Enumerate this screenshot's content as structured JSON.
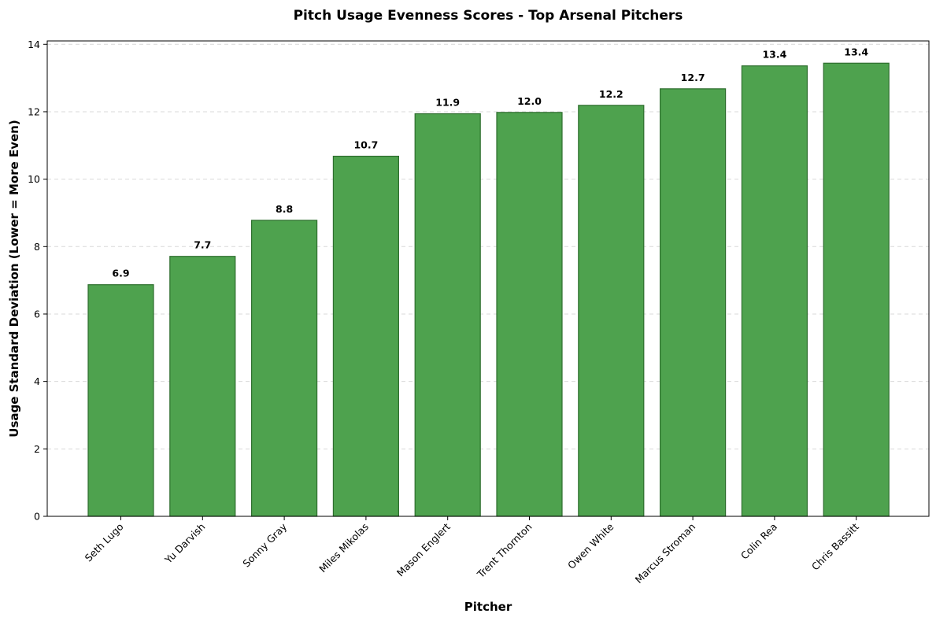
{
  "chart_data": {
    "type": "bar",
    "title": "Pitch Usage Evenness Scores - Top Arsenal Pitchers",
    "xlabel": "Pitcher",
    "ylabel": "Usage Standard Deviation (Lower = More Even)",
    "categories": [
      "Seth Lugo",
      "Yu Darvish",
      "Sonny Gray",
      "Miles Mikolas",
      "Mason Englert",
      "Trent Thornton",
      "Owen White",
      "Marcus Stroman",
      "Colin Rea",
      "Chris Bassitt"
    ],
    "values": [
      6.87,
      7.71,
      8.78,
      10.68,
      11.94,
      11.98,
      12.19,
      12.68,
      13.36,
      13.44
    ],
    "value_labels": [
      "6.9",
      "7.7",
      "8.8",
      "10.7",
      "11.9",
      "12.0",
      "12.2",
      "12.7",
      "13.4",
      "13.4"
    ],
    "ylim": [
      0,
      14.1
    ],
    "yticks": [
      0,
      2,
      4,
      6,
      8,
      10,
      12,
      14
    ],
    "grid": "y-dashed",
    "bar_color": "#4ea24e",
    "bar_edge_color": "#2e6e2e"
  }
}
